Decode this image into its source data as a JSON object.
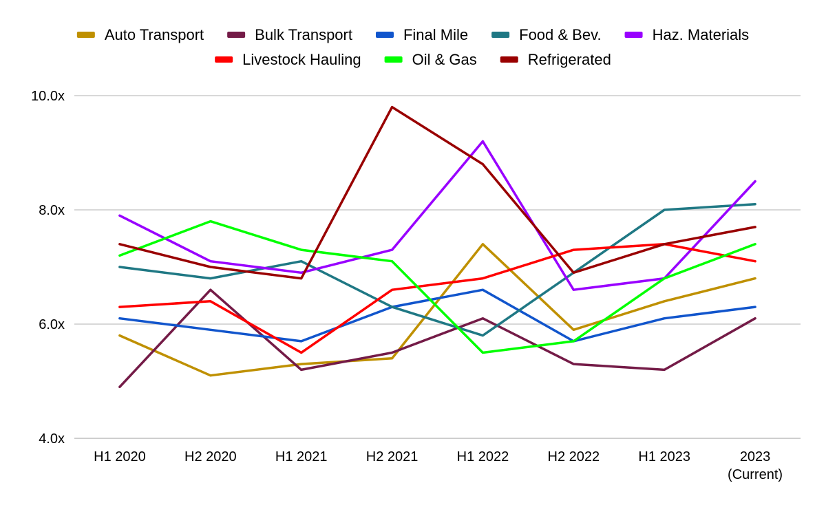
{
  "chart_data": {
    "type": "line",
    "title": "",
    "xlabel": "",
    "ylabel": "",
    "categories": [
      [
        "H1 2020"
      ],
      [
        "H2 2020"
      ],
      [
        "H1 2021"
      ],
      [
        "H2 2021"
      ],
      [
        "H1 2022"
      ],
      [
        "H2 2022"
      ],
      [
        "H1 2023"
      ],
      [
        "2023",
        "(Current)"
      ]
    ],
    "ylim": [
      4.0,
      10.0
    ],
    "yticks": [
      {
        "value": 4.0,
        "label": "4.0x"
      },
      {
        "value": 6.0,
        "label": "6.0x"
      },
      {
        "value": 8.0,
        "label": "8.0x"
      },
      {
        "value": 10.0,
        "label": "10.0x"
      }
    ],
    "grid": true,
    "legend_position": "top",
    "series": [
      {
        "name": "Auto Transport",
        "color": "#BF9000",
        "values": [
          5.8,
          5.1,
          5.3,
          5.4,
          7.4,
          5.9,
          6.4,
          6.8
        ]
      },
      {
        "name": "Bulk Transport",
        "color": "#741B47",
        "values": [
          4.9,
          6.6,
          5.2,
          5.5,
          6.1,
          5.3,
          5.2,
          6.1
        ]
      },
      {
        "name": "Final Mile",
        "color": "#1155CC",
        "values": [
          6.1,
          5.9,
          5.7,
          6.3,
          6.6,
          5.7,
          6.1,
          6.3
        ]
      },
      {
        "name": "Food & Bev.",
        "color": "#1F7884",
        "values": [
          7.0,
          6.8,
          7.1,
          6.3,
          5.8,
          6.9,
          8.0,
          8.1
        ]
      },
      {
        "name": "Haz. Materials",
        "color": "#9900FF",
        "values": [
          7.9,
          7.1,
          6.9,
          7.3,
          9.2,
          6.6,
          6.8,
          8.5
        ]
      },
      {
        "name": "Livestock Hauling",
        "color": "#FF0000",
        "values": [
          6.3,
          6.4,
          5.5,
          6.6,
          6.8,
          7.3,
          7.4,
          7.1
        ]
      },
      {
        "name": "Oil & Gas",
        "color": "#00FF00",
        "values": [
          7.2,
          7.8,
          7.3,
          7.1,
          5.5,
          5.7,
          6.8,
          7.4
        ]
      },
      {
        "name": "Refrigerated",
        "color": "#990000",
        "values": [
          7.4,
          7.0,
          6.8,
          9.8,
          8.8,
          6.9,
          7.4,
          7.7
        ]
      }
    ]
  }
}
